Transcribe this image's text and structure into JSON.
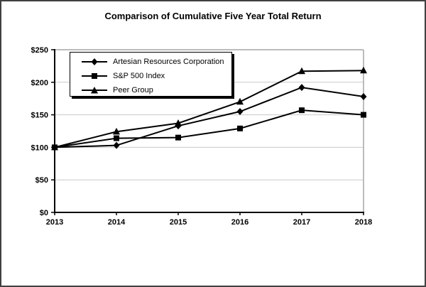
{
  "window": {
    "background": "#ffffff",
    "border_color": "#404040"
  },
  "chart_data": {
    "type": "line",
    "title": "Comparison of Cumulative Five Year Total Return",
    "xlabel": "",
    "ylabel": "",
    "x": [
      2013,
      2014,
      2015,
      2016,
      2017,
      2018
    ],
    "x_tick_labels": [
      "2013",
      "2014",
      "2015",
      "2016",
      "2017",
      "2018"
    ],
    "ylim": [
      0,
      250
    ],
    "y_tick_step": 50,
    "y_tick_labels": [
      "$0",
      "$50",
      "$100",
      "$150",
      "$200",
      "$250"
    ],
    "grid": true,
    "legend_position": "top-left-inside",
    "series": [
      {
        "name": "Artesian Resources Corporation",
        "marker": "diamond",
        "color": "#000000",
        "values": [
          100,
          103,
          133,
          155,
          192,
          178
        ]
      },
      {
        "name": "S&P 500 Index",
        "marker": "square",
        "color": "#000000",
        "values": [
          100,
          114,
          115,
          129,
          157,
          150
        ]
      },
      {
        "name": "Peer Group",
        "marker": "triangle",
        "color": "#000000",
        "values": [
          100,
          124,
          137,
          170,
          217,
          218
        ]
      }
    ],
    "colors": {
      "gridline": "#c9c9c9",
      "plot_border": "#a6a6a6",
      "axis": "#000000",
      "series": "#000000"
    }
  }
}
